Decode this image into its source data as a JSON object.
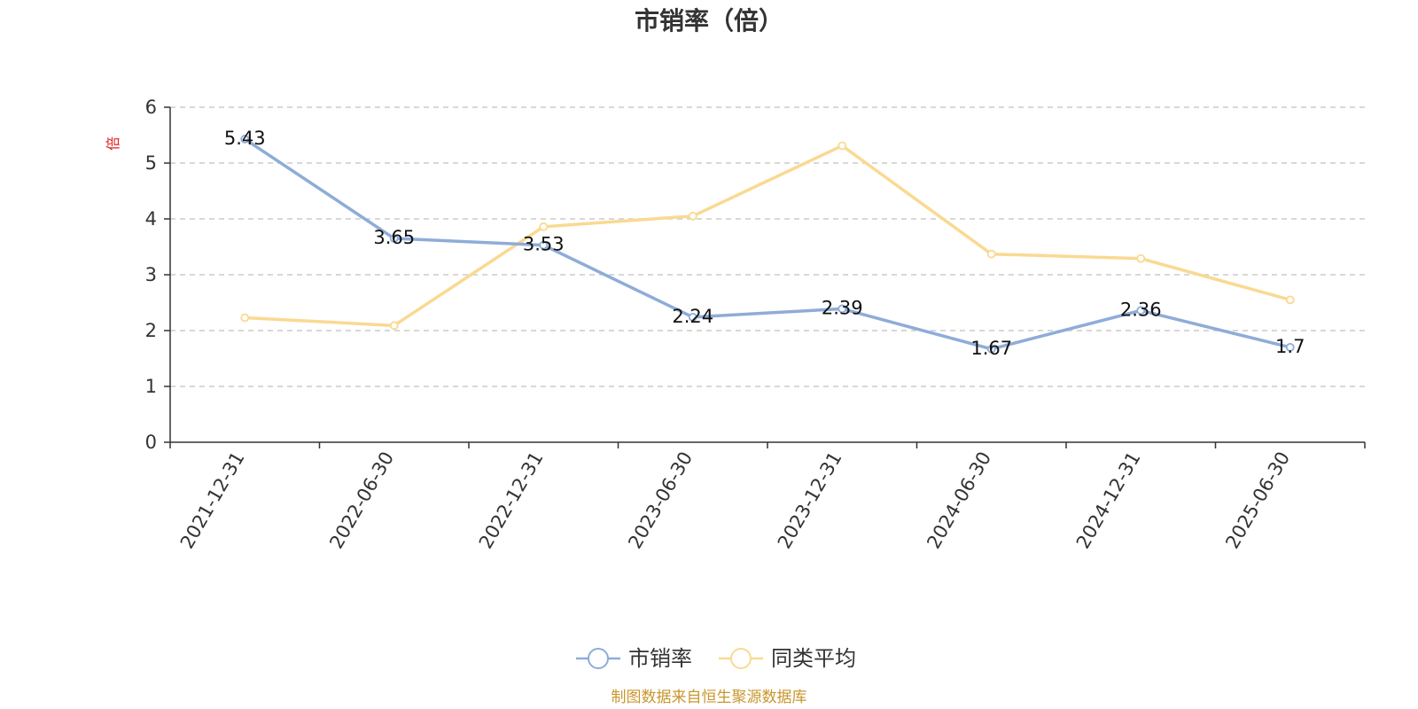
{
  "chart_data": {
    "type": "line",
    "title": "市销率（倍）",
    "ylabel": "倍",
    "ylim": [
      0,
      6
    ],
    "yticks": [
      0,
      1,
      2,
      3,
      4,
      5,
      6
    ],
    "categories": [
      "2021-12-31",
      "2022-06-30",
      "2022-12-31",
      "2023-06-30",
      "2023-12-31",
      "2024-06-30",
      "2024-12-31",
      "2025-06-30"
    ],
    "series": [
      {
        "name": "市销率",
        "values": [
          5.43,
          3.65,
          3.53,
          2.24,
          2.39,
          1.67,
          2.36,
          1.7
        ],
        "data_labels": [
          "5.43",
          "3.65",
          "3.53",
          "2.24",
          "2.39",
          "1.67",
          "2.36",
          "1.7"
        ],
        "color": "#8eacd8"
      },
      {
        "name": "同类平均",
        "values": [
          2.23,
          2.09,
          3.86,
          4.05,
          5.31,
          3.37,
          3.29,
          2.55
        ],
        "color": "#fad991"
      }
    ],
    "grid": "horizontal-dashed",
    "legend_position": "bottom",
    "ylabel_color": "#e02020"
  },
  "source_text": "制图数据来自恒生聚源数据库",
  "source_color": "#c8962c"
}
